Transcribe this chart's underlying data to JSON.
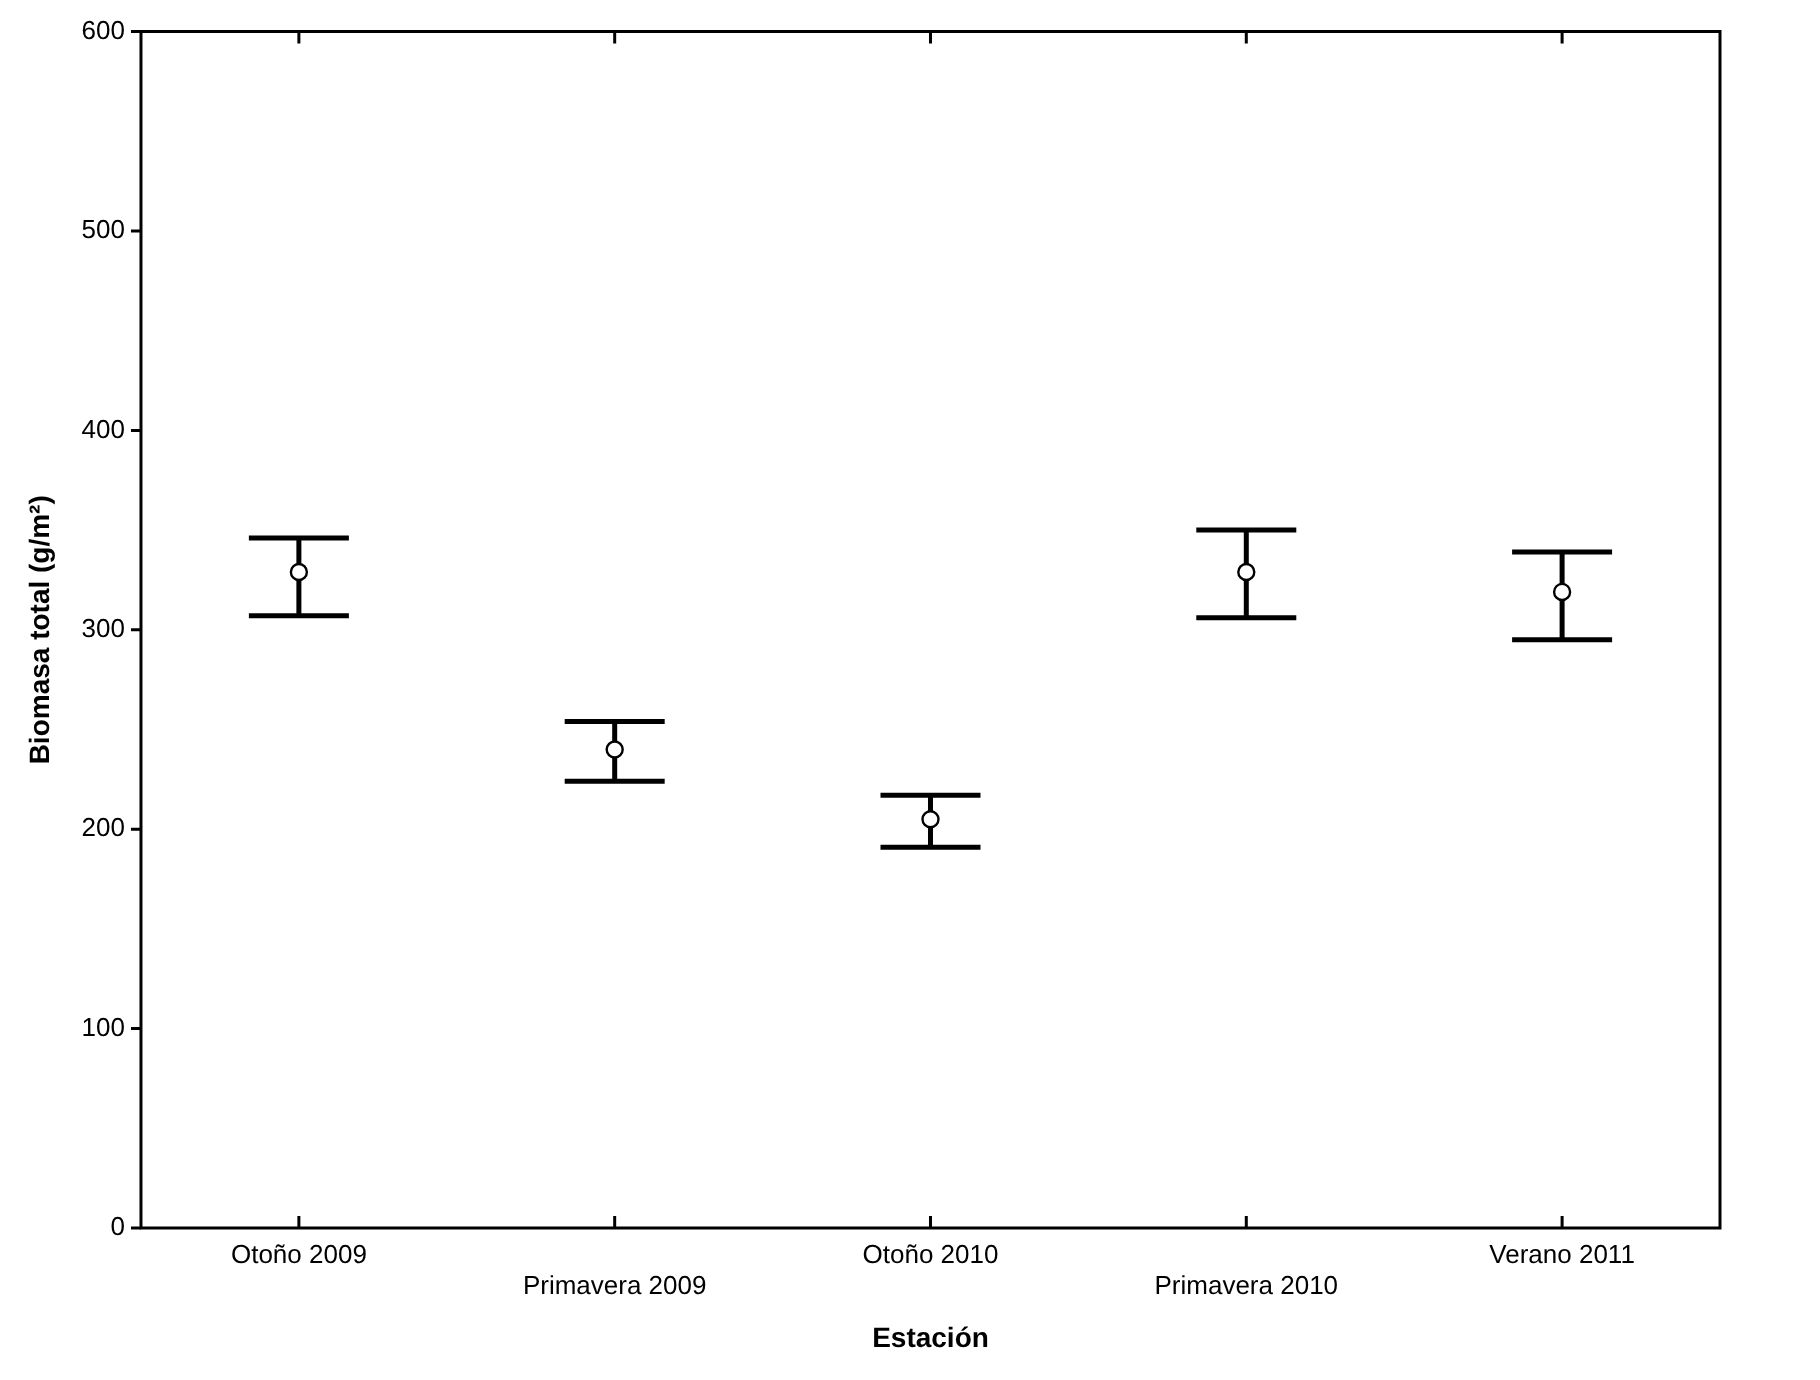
{
  "chart_data": {
    "type": "scatter",
    "xlabel": "Estación",
    "ylabel": "Biomasa total (g/m²)",
    "categories": [
      "Otoño 2009",
      "Primavera 2009",
      "Otoño 2010",
      "Primavera 2010",
      "Verano 2011"
    ],
    "values": [
      329,
      240,
      205,
      329,
      319
    ],
    "errors": [
      [
        307,
        346
      ],
      [
        224,
        254
      ],
      [
        191,
        217
      ],
      [
        306,
        350
      ],
      [
        295,
        339
      ]
    ],
    "color": "#000000",
    "marker": "circle",
    "ylim": [
      0,
      600
    ],
    "yticks": [
      0,
      100,
      200,
      300,
      400,
      500,
      600
    ],
    "grid": false,
    "legend": false
  }
}
